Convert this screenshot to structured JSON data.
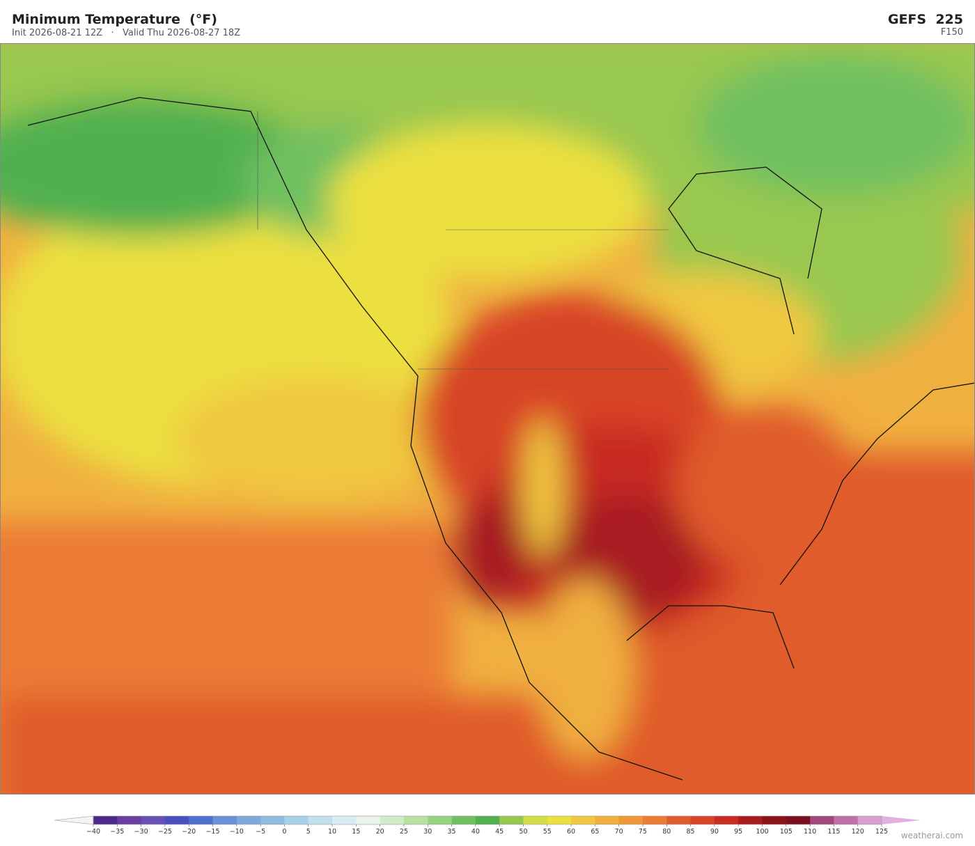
{
  "header": {
    "title": "Minimum Temperature  (°F)",
    "subtitle": "Init 2026-08-21 12Z   ·   Valid Thu 2026-08-27 18Z",
    "model": "GEFS  225",
    "forecast_hour": "F150"
  },
  "colorbar": {
    "ticks": [
      {
        "value": -40,
        "label": "−40"
      },
      {
        "value": -35,
        "label": "−35"
      },
      {
        "value": -30,
        "label": "−30"
      },
      {
        "value": -25,
        "label": "−25"
      },
      {
        "value": -20,
        "label": "−20"
      },
      {
        "value": -15,
        "label": "−15"
      },
      {
        "value": -10,
        "label": "−10"
      },
      {
        "value": -5,
        "label": "−5"
      },
      0,
      5,
      10,
      15,
      20,
      25,
      30,
      35,
      40,
      45,
      50,
      55,
      60,
      65,
      70,
      75,
      80,
      85,
      90,
      95,
      100,
      105,
      110,
      115,
      120,
      125
    ],
    "colors": [
      "#4b2a8c",
      "#6a3fa0",
      "#6a4fb5",
      "#4a50c0",
      "#5070d0",
      "#6a90d8",
      "#80a8dc",
      "#90bce0",
      "#a8d0e8",
      "#c0e0ee",
      "#d8ecf2",
      "#e8f4ec",
      "#d0ecc8",
      "#b8e0a0",
      "#98d480",
      "#70c060",
      "#50b050",
      "#98c850",
      "#d0dc48",
      "#ece040",
      "#f0c840",
      "#f0b040",
      "#f09838",
      "#ec7c34",
      "#e05c2c",
      "#d84428",
      "#c82c24",
      "#a81c20",
      "#8c1418",
      "#781020",
      "#a04878",
      "#c070a8",
      "#d8a0d0"
    ],
    "under_color": "#f4f4f4",
    "over_color": "#e0b0e0"
  },
  "watermark": "weatherai.com"
}
